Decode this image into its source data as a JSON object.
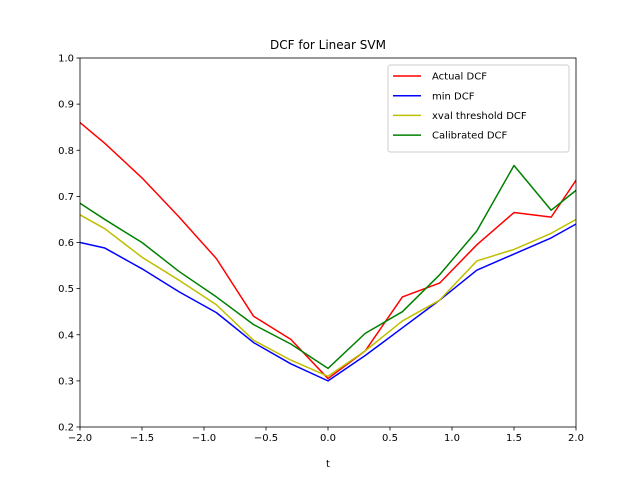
{
  "chart_data": {
    "type": "line",
    "title": "DCF for Linear SVM",
    "xlabel": "t",
    "ylabel": "",
    "xlim": [
      -2.0,
      2.0
    ],
    "ylim": [
      0.2,
      1.0
    ],
    "x_ticks": [
      -2.0,
      -1.5,
      -1.0,
      -0.5,
      0.0,
      0.5,
      1.0,
      1.5,
      2.0
    ],
    "x_tick_labels": [
      "−2.0",
      "−1.5",
      "−1.0",
      "−0.5",
      "0.0",
      "0.5",
      "1.0",
      "1.5",
      "2.0"
    ],
    "y_ticks": [
      0.2,
      0.3,
      0.4,
      0.5,
      0.6,
      0.7,
      0.8,
      0.9,
      1.0
    ],
    "y_tick_labels": [
      "0.2",
      "0.3",
      "0.4",
      "0.5",
      "0.6",
      "0.7",
      "0.8",
      "0.9",
      "1.0"
    ],
    "grid": false,
    "legend_position": "top-right",
    "x": [
      -2.0,
      -1.8,
      -1.5,
      -1.2,
      -0.9,
      -0.6,
      -0.3,
      0.0,
      0.3,
      0.6,
      0.9,
      1.2,
      1.5,
      1.8,
      2.0
    ],
    "series": [
      {
        "name": "Actual DCF",
        "color": "#ff0000",
        "values": [
          0.86,
          0.815,
          0.74,
          0.655,
          0.565,
          0.44,
          0.39,
          0.305,
          0.365,
          0.482,
          0.512,
          0.595,
          0.665,
          0.655,
          0.735
        ]
      },
      {
        "name": "min DCF",
        "color": "#0000ff",
        "values": [
          0.6,
          0.588,
          0.543,
          0.493,
          0.448,
          0.383,
          0.337,
          0.3,
          0.355,
          0.415,
          0.475,
          0.54,
          0.575,
          0.61,
          0.64
        ]
      },
      {
        "name": "xval threshold DCF",
        "color": "#bfbf00",
        "values": [
          0.66,
          0.63,
          0.568,
          0.518,
          0.465,
          0.388,
          0.345,
          0.31,
          0.365,
          0.43,
          0.475,
          0.56,
          0.585,
          0.62,
          0.65
        ]
      },
      {
        "name": "Calibrated DCF",
        "color": "#008000",
        "values": [
          0.685,
          0.65,
          0.6,
          0.537,
          0.482,
          0.422,
          0.38,
          0.327,
          0.403,
          0.45,
          0.53,
          0.625,
          0.767,
          0.67,
          0.713
        ]
      }
    ]
  }
}
